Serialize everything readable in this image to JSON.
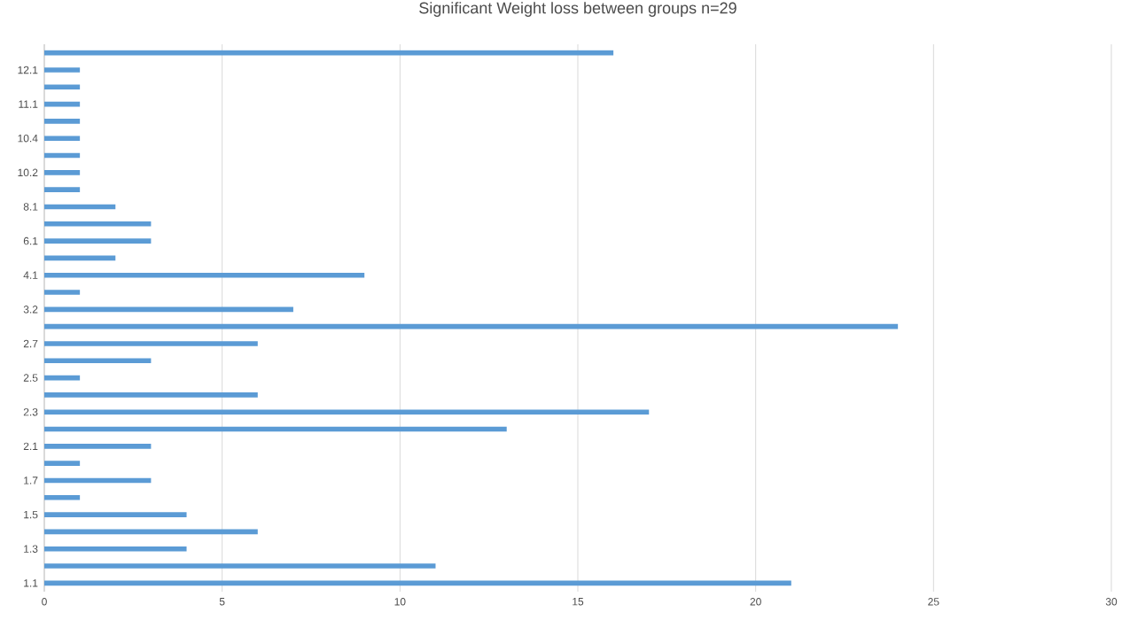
{
  "chart_data": {
    "type": "bar",
    "orientation": "horizontal",
    "title": "Significant Weight loss between groups n=29",
    "categories": [
      null,
      "12.1",
      null,
      "11.1",
      null,
      "10.4",
      null,
      "10.2",
      null,
      "8.1",
      null,
      "6.1",
      null,
      "4.1",
      null,
      "3.2",
      null,
      "2.7",
      null,
      "2.5",
      null,
      "2.3",
      null,
      "2.1",
      null,
      "1.7",
      null,
      "1.5",
      null,
      "1.3",
      null,
      "1.1"
    ],
    "values": [
      16,
      1,
      1,
      1,
      1,
      1,
      1,
      1,
      1,
      2,
      3,
      3,
      2,
      9,
      1,
      7,
      24,
      6,
      3,
      1,
      6,
      17,
      13,
      3,
      1,
      3,
      1,
      4,
      6,
      4,
      11,
      21
    ],
    "color": "#5b9bd5",
    "xlim": [
      0,
      30
    ],
    "xticks": [
      0,
      5,
      10,
      15,
      20,
      25,
      30
    ],
    "grid": "x"
  }
}
